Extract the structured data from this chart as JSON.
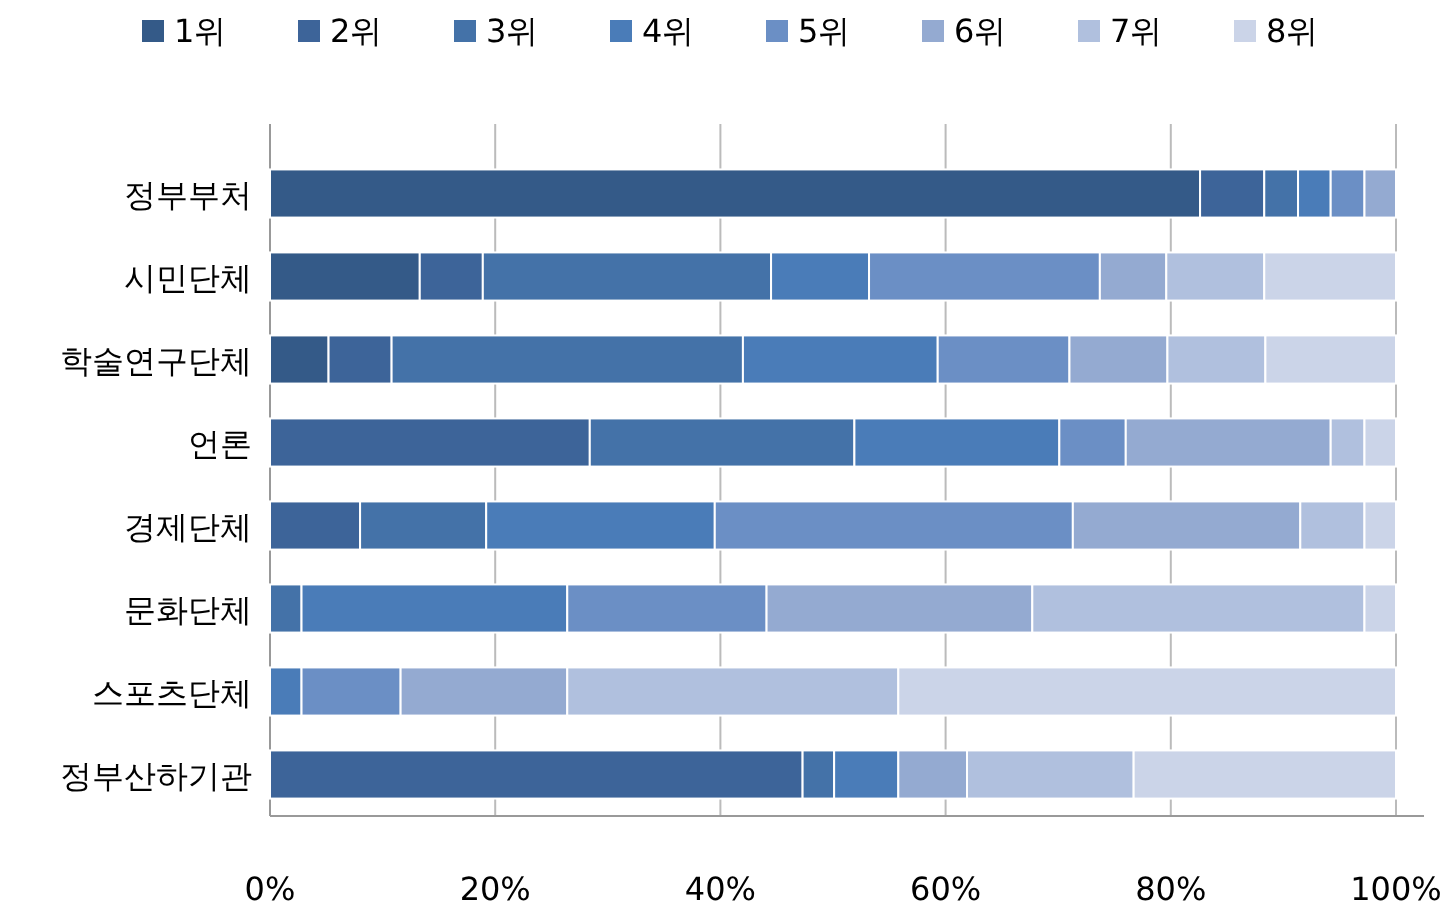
{
  "chart_data": {
    "type": "bar",
    "orientation": "horizontal",
    "stacked": true,
    "categories": [
      "정부부처",
      "시민단체",
      "학술연구단체",
      "언론",
      "경제단체",
      "문화단체",
      "스포츠단체",
      "정부산하기관"
    ],
    "series": [
      {
        "name": "1위",
        "color": "#345a88",
        "values": [
          82.6,
          13.3,
          5.2,
          0,
          0,
          0,
          0,
          0
        ]
      },
      {
        "name": "2위",
        "color": "#3d6499",
        "values": [
          5.7,
          5.6,
          5.6,
          28.4,
          8.0,
          0,
          0,
          47.3
        ]
      },
      {
        "name": "3위",
        "color": "#4472a8",
        "values": [
          3.0,
          25.6,
          31.2,
          23.5,
          11.2,
          2.8,
          0,
          2.8
        ]
      },
      {
        "name": "4위",
        "color": "#4a7cb8",
        "values": [
          2.9,
          8.7,
          17.3,
          18.2,
          20.3,
          23.6,
          2.8,
          5.7
        ]
      },
      {
        "name": "5위",
        "color": "#6b8fc5",
        "values": [
          3.0,
          20.5,
          11.7,
          5.9,
          31.8,
          17.7,
          8.8,
          0
        ]
      },
      {
        "name": "6위",
        "color": "#94aad1",
        "values": [
          2.8,
          5.9,
          8.7,
          18.2,
          20.2,
          23.6,
          14.8,
          6.1
        ]
      },
      {
        "name": "7위",
        "color": "#b0c0de",
        "values": [
          0,
          8.7,
          8.7,
          3.0,
          5.7,
          29.5,
          29.4,
          14.8
        ]
      },
      {
        "name": "8위",
        "color": "#cbd4e8",
        "values": [
          0,
          11.7,
          11.6,
          2.8,
          2.8,
          2.8,
          44.2,
          23.3
        ]
      }
    ],
    "xlim": [
      0,
      100
    ],
    "xticks": [
      {
        "value": 0,
        "label": "0%"
      },
      {
        "value": 20,
        "label": "20%"
      },
      {
        "value": 40,
        "label": "40%"
      },
      {
        "value": 60,
        "label": "60%"
      },
      {
        "value": 80,
        "label": "80%"
      },
      {
        "value": 100,
        "label": "100%"
      }
    ],
    "grid": "x",
    "legend": "top"
  }
}
